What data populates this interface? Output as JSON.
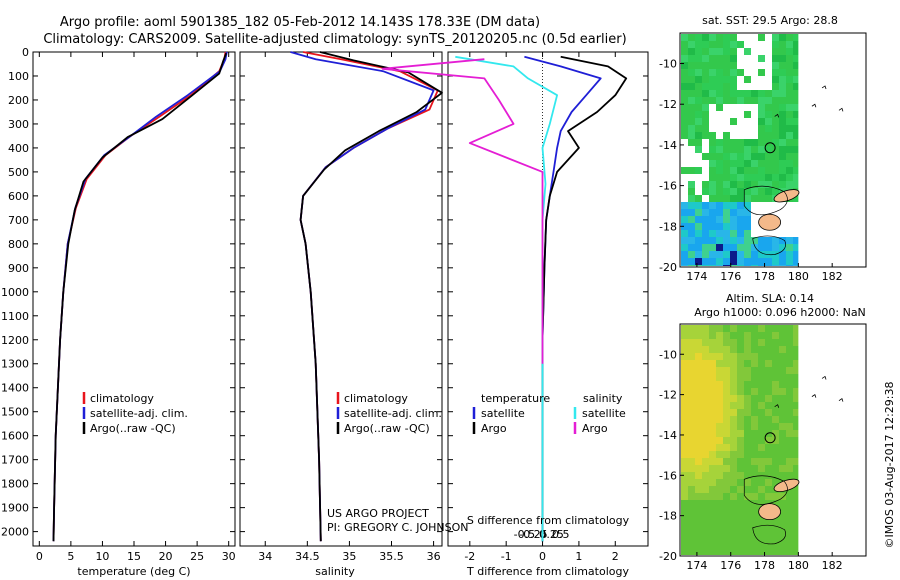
{
  "titles": {
    "line1": "Argo profile: aoml 5901385_182 05-Feb-2012 14.143S 178.33E (DM data)",
    "line2": "Climatology: CARS2009. Satellite-adjusted climatology: synTS_20120205.nc (0.5d earlier)"
  },
  "credit": {
    "line1": "US ARGO PROJECT",
    "line2": "PI: GREGORY C. JOHNSON"
  },
  "timestamp": "©IMOS 03-Aug-2017 12:29:38",
  "colors": {
    "climatology": "#e8141c",
    "satellite": "#1f1fd6",
    "argo": "#000000",
    "sat_salinity": "#33e8ee",
    "argo_salinity": "#e41ed4"
  },
  "chart_data": [
    {
      "type": "line",
      "id": "temperature",
      "xlabel": "temperature (deg C)",
      "ylabel": "",
      "xlim": [
        -1,
        31
      ],
      "ylim": [
        2060,
        0
      ],
      "xticks": [
        0,
        5,
        10,
        15,
        20,
        25,
        30
      ],
      "yticks": [
        0,
        100,
        200,
        300,
        400,
        500,
        600,
        700,
        800,
        900,
        1000,
        1100,
        1200,
        1300,
        1400,
        1500,
        1600,
        1700,
        1800,
        1900,
        2000
      ],
      "legend": [
        "climatology",
        "satellite-adj. clim.",
        "Argo(..raw -QC)"
      ],
      "series": [
        {
          "name": "climatology",
          "color": "#e8141c",
          "x": [
            29.5,
            29.3,
            28.5,
            24,
            19,
            14.5,
            10.5,
            7.5,
            5.8,
            4.5,
            3.8,
            3.3,
            2.6,
            2.35,
            2.25
          ],
          "y": [
            0,
            30,
            80,
            180,
            270,
            350,
            430,
            530,
            650,
            800,
            1000,
            1200,
            1600,
            1900,
            2040
          ]
        },
        {
          "name": "satellite-adj. clim.",
          "color": "#1f1fd6",
          "x": [
            29.7,
            29.5,
            28.6,
            23.5,
            18.5,
            14.5,
            10.3,
            7.3,
            5.7,
            4.5,
            3.8,
            3.3,
            2.6,
            2.35,
            2.25
          ],
          "y": [
            0,
            30,
            80,
            180,
            270,
            350,
            430,
            530,
            650,
            800,
            1000,
            1200,
            1600,
            1900,
            2040
          ]
        },
        {
          "name": "Argo(..raw -QC)",
          "color": "#000000",
          "x": [
            29.6,
            29.1,
            28.5,
            24,
            19.5,
            14,
            10,
            7,
            5.6,
            4.6,
            3.8,
            3.3,
            2.6,
            2.35,
            2.25
          ],
          "y": [
            5,
            40,
            90,
            185,
            280,
            355,
            440,
            540,
            660,
            800,
            1000,
            1200,
            1600,
            1900,
            2040
          ]
        }
      ]
    },
    {
      "type": "line",
      "id": "salinity",
      "xlabel": "salinity",
      "ylabel": "",
      "xlim": [
        33.7,
        36.1
      ],
      "ylim": [
        2060,
        0
      ],
      "xticks": [
        34,
        34.5,
        35,
        35.5,
        36
      ],
      "legend": [
        "climatology",
        "satellite-adj. clim.",
        "Argo(..raw -QC)"
      ],
      "series": [
        {
          "name": "climatology",
          "color": "#e8141c",
          "x": [
            34.45,
            34.9,
            35.6,
            36.05,
            35.95,
            35.45,
            35.05,
            34.72,
            34.45,
            34.42,
            34.48,
            34.54,
            34.6,
            34.64,
            34.66
          ],
          "y": [
            0,
            30,
            80,
            160,
            240,
            320,
            400,
            480,
            600,
            700,
            800,
            1000,
            1300,
            1700,
            2040
          ]
        },
        {
          "name": "satellite-adj. clim.",
          "color": "#1f1fd6",
          "x": [
            34.3,
            34.6,
            35.4,
            36.0,
            35.9,
            35.45,
            35.05,
            34.72,
            34.45,
            34.42,
            34.48,
            34.54,
            34.6,
            34.64,
            34.66
          ],
          "y": [
            0,
            30,
            80,
            160,
            240,
            320,
            400,
            480,
            600,
            700,
            800,
            1000,
            1300,
            1700,
            2040
          ]
        },
        {
          "name": "Argo(..raw -QC)",
          "color": "#000000",
          "x": [
            34.65,
            35.05,
            35.7,
            36.1,
            35.8,
            35.35,
            34.95,
            34.7,
            34.45,
            34.42,
            34.48,
            34.54,
            34.6,
            34.64,
            34.66
          ],
          "y": [
            0,
            35,
            85,
            170,
            250,
            330,
            410,
            490,
            600,
            700,
            800,
            1000,
            1300,
            1700,
            2040
          ]
        }
      ]
    },
    {
      "type": "line",
      "id": "differences",
      "xlabel": "T difference from climatology",
      "xlabel2": "S difference from climatology",
      "xlim": [
        -2.6,
        2.9
      ],
      "ylim": [
        2060,
        0
      ],
      "xticks": [
        -2,
        -1,
        0,
        1,
        2
      ],
      "xticks2": [
        -0.5,
        -0.25,
        0,
        0.25,
        0.5
      ],
      "xtick2_labels": [
        "-0.5",
        "-0.25",
        "0",
        "0.25",
        "0.5"
      ],
      "legend_headers": [
        "temperature",
        "salinity"
      ],
      "legend": [
        "satellite",
        "Argo",
        "satellite",
        "Argo"
      ],
      "series": [
        {
          "name": "T satellite",
          "color": "#1f1fd6",
          "x": [
            -0.5,
            0.5,
            1.6,
            1.2,
            0.8,
            0.5,
            0.4,
            0.3,
            0.2,
            0.1,
            0.05,
            0,
            0,
            0
          ],
          "y": [
            20,
            60,
            110,
            180,
            250,
            330,
            400,
            500,
            600,
            700,
            900,
            1200,
            1600,
            2040
          ]
        },
        {
          "name": "T Argo",
          "color": "#000000",
          "x": [
            0.5,
            1.8,
            2.3,
            2.0,
            1.5,
            0.7,
            1.0,
            0.4,
            0.2,
            0.1,
            0.05,
            0,
            0,
            0
          ],
          "y": [
            20,
            60,
            110,
            180,
            250,
            330,
            400,
            500,
            600,
            700,
            900,
            1200,
            1600,
            2040
          ]
        },
        {
          "name": "S satellite",
          "color": "#33e8ee",
          "x": [
            -0.6,
            -0.2,
            -0.1,
            0.1,
            0.05,
            0,
            0.02,
            0,
            0,
            0,
            0,
            0
          ],
          "y": [
            20,
            60,
            110,
            180,
            300,
            400,
            550,
            700,
            900,
            1200,
            1600,
            2040
          ]
        },
        {
          "name": "S Argo",
          "color": "#e41ed4",
          "x": [
            -0.4,
            -1.1,
            -0.4,
            -0.3,
            -0.2,
            -0.5,
            0,
            0,
            0,
            0
          ],
          "y": [
            30,
            70,
            110,
            200,
            300,
            380,
            500,
            700,
            1000,
            1300
          ]
        }
      ]
    },
    {
      "type": "heatmap",
      "id": "sst_map",
      "title": "sat. SST: 29.5 Argo: 28.8",
      "xlim": [
        173,
        184
      ],
      "ylim": [
        -20,
        -8.5
      ],
      "xticks": [
        174,
        176,
        178,
        180,
        182
      ],
      "yticks": [
        -10,
        -12,
        -14,
        -16,
        -18,
        -20
      ],
      "argo_position": [
        178.33,
        -14.14
      ]
    },
    {
      "type": "heatmap",
      "id": "sla_map",
      "title": "Altim. SLA: 0.14",
      "subtitle": "Argo h1000: 0.096 h2000: NaN",
      "xlim": [
        173,
        184
      ],
      "ylim": [
        -20,
        -8.5
      ],
      "xticks": [
        174,
        176,
        178,
        180,
        182
      ],
      "yticks": [
        -10,
        -12,
        -14,
        -16,
        -18,
        -20
      ],
      "argo_position": [
        178.33,
        -14.14
      ]
    }
  ]
}
